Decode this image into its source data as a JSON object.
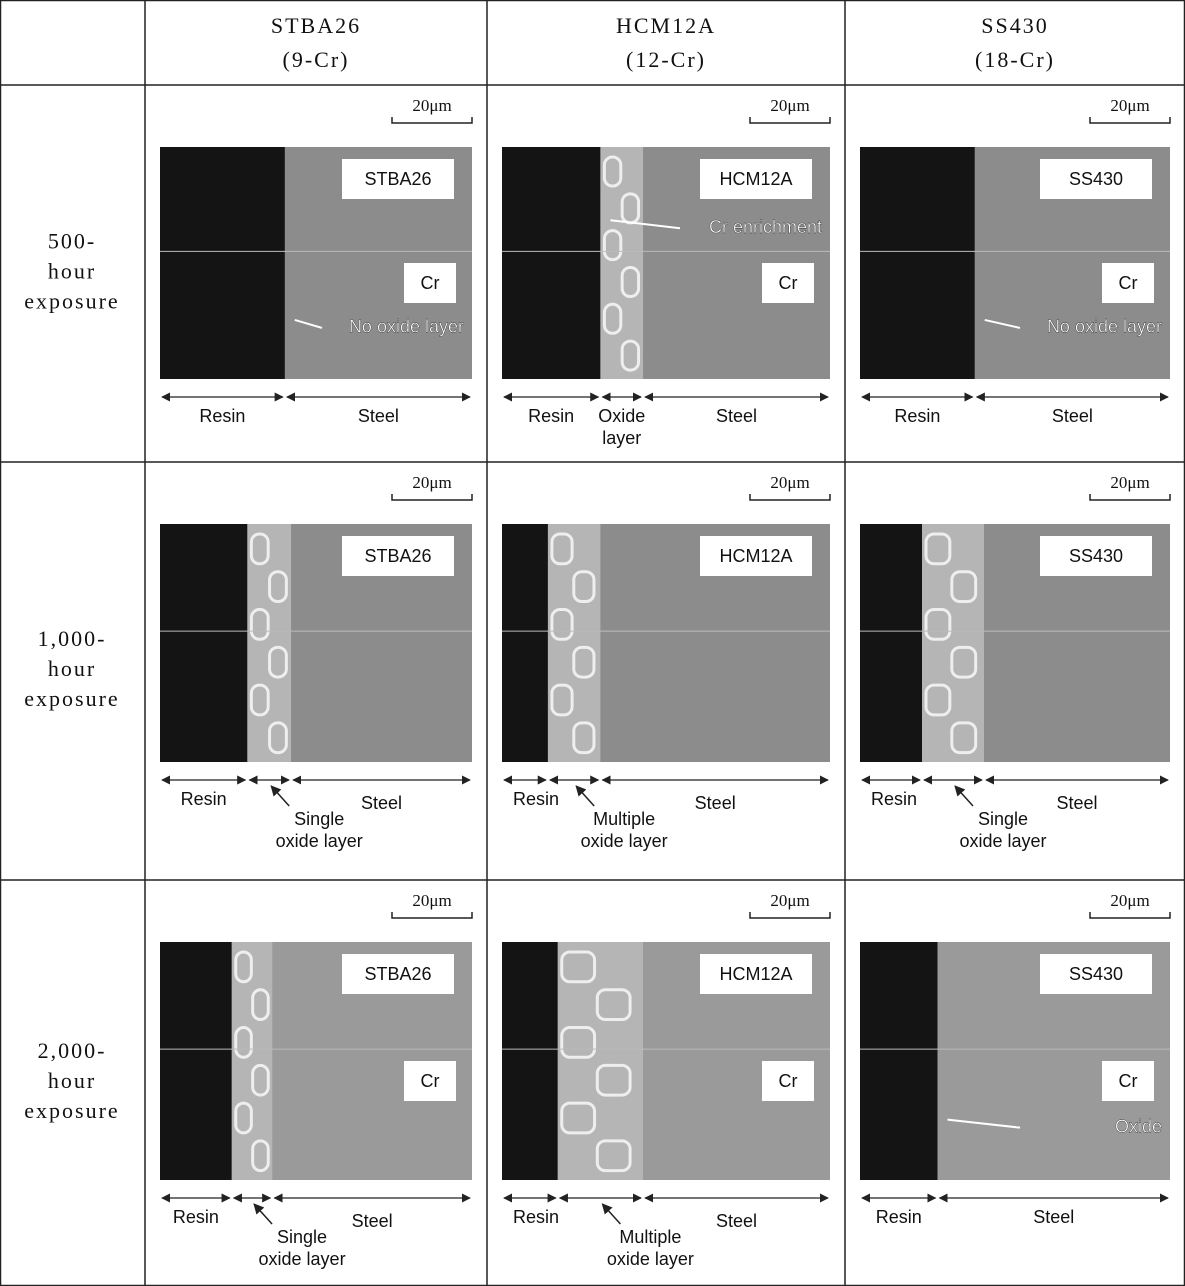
{
  "table": {
    "columns": [
      {
        "name": "STBA26",
        "sub": "(9-Cr)"
      },
      {
        "name": "HCM12A",
        "sub": "(12-Cr)"
      },
      {
        "name": "SS430",
        "sub": "(18-Cr)"
      }
    ],
    "rows": [
      {
        "label": [
          "500-",
          "hour",
          "exposure"
        ],
        "cells": [
          {
            "scale": "20μm",
            "sample": "STBA26",
            "element": "Cr",
            "note": "No oxide layer",
            "resin": "Resin",
            "steel": "Steel"
          },
          {
            "scale": "20μm",
            "sample": "HCM12A",
            "element": "Cr",
            "note": "Cr enrichment",
            "resin": "Resin",
            "oxide": [
              "Oxide",
              "layer"
            ],
            "steel": "Steel"
          },
          {
            "scale": "20μm",
            "sample": "SS430",
            "element": "Cr",
            "note": "No oxide layer",
            "resin": "Resin",
            "steel": "Steel"
          }
        ]
      },
      {
        "label": [
          "1,000-",
          "hour",
          "exposure"
        ],
        "cells": [
          {
            "scale": "20μm",
            "sample": "STBA26",
            "resin": "Resin",
            "oxide": [
              "Single",
              "oxide layer"
            ],
            "steel": "Steel"
          },
          {
            "scale": "20μm",
            "sample": "HCM12A",
            "resin": "Resin",
            "oxide": [
              "Multiple",
              "oxide layer"
            ],
            "steel": "Steel"
          },
          {
            "scale": "20μm",
            "sample": "SS430",
            "resin": "Resin",
            "oxide": [
              "Single",
              "oxide layer"
            ],
            "steel": "Steel"
          }
        ]
      },
      {
        "label": [
          "2,000-",
          "hour",
          "exposure"
        ],
        "cells": [
          {
            "scale": "20μm",
            "sample": "STBA26",
            "element": "Cr",
            "resin": "Resin",
            "oxide": [
              "Single",
              "oxide layer"
            ],
            "steel": "Steel"
          },
          {
            "scale": "20μm",
            "sample": "HCM12A",
            "element": "Cr",
            "resin": "Resin",
            "oxide": [
              "Multiple",
              "oxide layer"
            ],
            "steel": "Steel"
          },
          {
            "scale": "20μm",
            "sample": "SS430",
            "element": "Cr",
            "note": "Oxide",
            "resin": "Resin",
            "steel": "Steel"
          }
        ]
      }
    ]
  }
}
